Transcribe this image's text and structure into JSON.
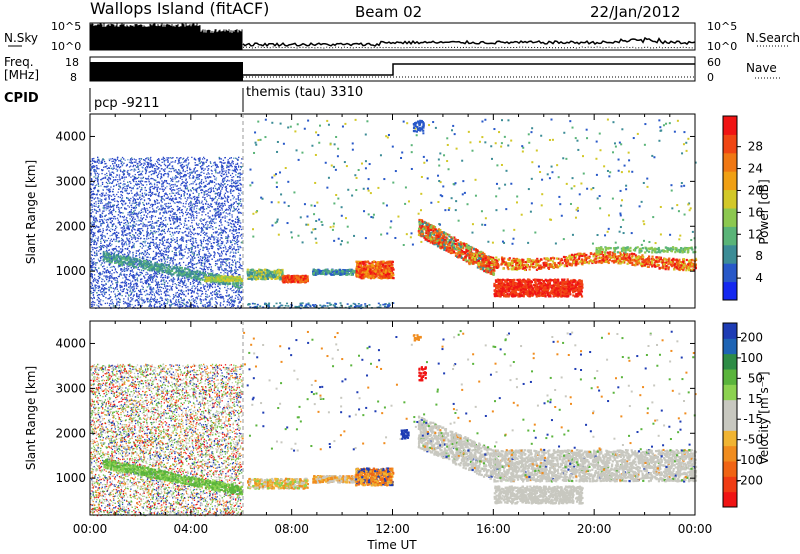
{
  "header": {
    "title": "Wallops Island (fitACF)",
    "beam": "Beam 02",
    "date": "22/Jan/2012"
  },
  "nsky_panel": {
    "left_label": "N.Sky",
    "right_label": "N.Search",
    "left_ticks": [
      "10^5",
      "10^0"
    ],
    "right_ticks": [
      "10^5",
      "10^0"
    ]
  },
  "freq_panel": {
    "left_label_line1": "Freq.",
    "left_label_line2": "[MHz]",
    "right_label": "Nave",
    "left_ticks": [
      "18",
      "8"
    ],
    "right_ticks": [
      "60",
      "0"
    ]
  },
  "cpid_panel": {
    "label": "CPID",
    "programs": [
      "pcp -9211",
      "themis (tau) 3310"
    ]
  },
  "chart_data": [
    {
      "type": "heatmap",
      "name": "power",
      "ylabel": "Slant Range [km]",
      "ylim": [
        180,
        4500
      ],
      "yticks": [
        1000,
        2000,
        3000,
        4000
      ],
      "xticks": [
        "00:00",
        "04:00",
        "08:00",
        "12:00",
        "16:00",
        "20:00",
        "00:00"
      ],
      "xlim_hours": [
        0,
        24
      ],
      "colorbar": {
        "label": "Power [dB]",
        "ticks": [
          "4",
          "8",
          "12",
          "16",
          "20",
          "24",
          "28"
        ],
        "colors": [
          "#1428f0",
          "#2858c8",
          "#3c8c96",
          "#5ab478",
          "#8cc850",
          "#d2c828",
          "#f0a014",
          "#f07814",
          "#f04614",
          "#f01414"
        ]
      }
    },
    {
      "type": "heatmap",
      "name": "velocity",
      "ylabel": "Slant Range [km]",
      "ylim": [
        180,
        4500
      ],
      "yticks": [
        1000,
        2000,
        3000,
        4000
      ],
      "xticks": [
        "00:00",
        "04:00",
        "08:00",
        "12:00",
        "16:00",
        "20:00",
        "00:00"
      ],
      "xlabel": "Time UT",
      "xlim_hours": [
        0,
        24
      ],
      "colorbar": {
        "label": "Velocity [m s⁻¹]",
        "ticks": [
          "200",
          "100",
          "50",
          "15",
          "-15",
          "-50",
          "-100",
          "-200"
        ],
        "colors": [
          "#1e3cb4",
          "#1e64b4",
          "#2e8c46",
          "#5ab43c",
          "#8cd250",
          "#c8c8c0",
          "#c8c8c0",
          "#f0b432",
          "#f08c1e",
          "#f06414",
          "#f03c14",
          "#f01414"
        ]
      }
    }
  ]
}
